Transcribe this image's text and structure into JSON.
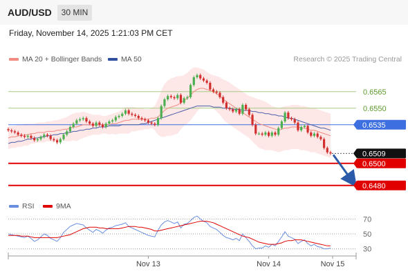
{
  "header": {
    "pair": "AUD/USD",
    "timeframe": "30 MIN",
    "datetime": "Friday, November 14, 2025 1:21:03 PM CET"
  },
  "legend": {
    "ma20_label": "MA 20 + Bollinger Bands",
    "ma50_label": "MA 50",
    "credit": "Research © 2025 Trading Central"
  },
  "rsi_legend": {
    "rsi_label": "RSI",
    "ma_label": "9MA"
  },
  "colors": {
    "candle_up": "#4caf50",
    "candle_down": "#d32f2f",
    "ma20": "#f28b82",
    "bands": "#fde3e3",
    "ma50": "#4a5fa8",
    "resistance_green": "#a8cc84",
    "pivot_blue": "#3d6fe0",
    "support_red": "#e00000",
    "arrow": "#2a5aa8",
    "rsi": "#6a8ee0",
    "rsi_ma": "#e00000"
  },
  "chart_data": [
    {
      "type": "candlestick",
      "title": "AUD/USD 30 MIN",
      "x_tick_labels": [
        "Nov 13",
        "Nov 14",
        "Nov 15"
      ],
      "ylim": [
        0.6468,
        0.6588
      ],
      "levels": [
        {
          "value": 0.6565,
          "label": "0.6565",
          "kind": "resistance"
        },
        {
          "value": 0.655,
          "label": "0.6550",
          "kind": "resistance"
        },
        {
          "value": 0.6535,
          "label": "0.6535",
          "kind": "pivot"
        },
        {
          "value": 0.6509,
          "label": "0.6509",
          "kind": "last"
        },
        {
          "value": 0.65,
          "label": "0.6500",
          "kind": "support"
        },
        {
          "value": 0.648,
          "label": "0.6480",
          "kind": "support"
        }
      ],
      "close": [
        0.653,
        0.6529,
        0.6528,
        0.6526,
        0.6525,
        0.6524,
        0.6525,
        0.6523,
        0.6521,
        0.6522,
        0.6524,
        0.6526,
        0.6525,
        0.6522,
        0.6521,
        0.6519,
        0.6522,
        0.6526,
        0.6529,
        0.6533,
        0.6536,
        0.6539,
        0.654,
        0.6541,
        0.6538,
        0.6536,
        0.6534,
        0.6537,
        0.6535,
        0.6533,
        0.6536,
        0.6538,
        0.6539,
        0.6542,
        0.6543,
        0.6545,
        0.6548,
        0.6545,
        0.6544,
        0.6543,
        0.6541,
        0.654,
        0.6539,
        0.6537,
        0.6536,
        0.6535,
        0.6541,
        0.6552,
        0.6558,
        0.6561,
        0.656,
        0.6559,
        0.6562,
        0.6555,
        0.6559,
        0.656,
        0.6571,
        0.6578,
        0.658,
        0.6577,
        0.6575,
        0.6573,
        0.6567,
        0.6565,
        0.6564,
        0.656,
        0.6555,
        0.655,
        0.6549,
        0.6547,
        0.6549,
        0.6545,
        0.6553,
        0.6549,
        0.6544,
        0.6535,
        0.6527,
        0.6527,
        0.6526,
        0.6528,
        0.6525,
        0.6528,
        0.6526,
        0.6532,
        0.6538,
        0.6546,
        0.6541,
        0.654,
        0.6537,
        0.653,
        0.6533,
        0.6534,
        0.6528,
        0.6525,
        0.6527,
        0.6524,
        0.6522,
        0.6514,
        0.651,
        0.6509
      ],
      "ma20": [
        0.6523,
        0.6524,
        0.6524,
        0.6525,
        0.6525,
        0.6526,
        0.6526,
        0.6527,
        0.6527,
        0.6528,
        0.6528,
        0.6528,
        0.6529,
        0.6529,
        0.6529,
        0.653,
        0.653,
        0.6531,
        0.6531,
        0.6532,
        0.6533,
        0.6533,
        0.6534,
        0.6535,
        0.6535,
        0.6535,
        0.6535,
        0.6535,
        0.6535,
        0.6535,
        0.6535,
        0.6535,
        0.6536,
        0.6536,
        0.6537,
        0.6538,
        0.6539,
        0.6539,
        0.654,
        0.654,
        0.654,
        0.654,
        0.654,
        0.654,
        0.6541,
        0.6541,
        0.6542,
        0.6545,
        0.6548,
        0.655,
        0.6551,
        0.6552,
        0.6553,
        0.6555,
        0.6557,
        0.6559,
        0.6562,
        0.6565,
        0.6567,
        0.6568,
        0.6568,
        0.6567,
        0.6566,
        0.6565,
        0.6563,
        0.6561,
        0.6558,
        0.6556,
        0.6554,
        0.6552,
        0.655,
        0.6548,
        0.6546,
        0.6544,
        0.6542,
        0.654,
        0.6538,
        0.6536,
        0.6535,
        0.6534,
        0.6533,
        0.6532,
        0.6531,
        0.653,
        0.6531,
        0.6532,
        0.6532,
        0.6533,
        0.6533,
        0.6533,
        0.6532,
        0.6532,
        0.6531,
        0.653,
        0.653,
        0.6529,
        0.6528,
        0.6527,
        0.6526,
        0.6525
      ],
      "ma50": [
        0.6518,
        0.6519,
        0.6519,
        0.652,
        0.652,
        0.6521,
        0.6522,
        0.6522,
        0.6523,
        0.6523,
        0.6524,
        0.6524,
        0.6525,
        0.6525,
        0.6526,
        0.6526,
        0.6527,
        0.6527,
        0.6528,
        0.6528,
        0.6529,
        0.6529,
        0.653,
        0.653,
        0.6531,
        0.6531,
        0.6532,
        0.6532,
        0.6533,
        0.6533,
        0.6533,
        0.6534,
        0.6534,
        0.6534,
        0.6534,
        0.6535,
        0.6535,
        0.6535,
        0.6535,
        0.6535,
        0.6535,
        0.6536,
        0.6536,
        0.6537,
        0.6538,
        0.6539,
        0.654,
        0.6541,
        0.6542,
        0.6543,
        0.6544,
        0.6545,
        0.6546,
        0.6547,
        0.6548,
        0.6549,
        0.655,
        0.6551,
        0.6552,
        0.6552,
        0.6552,
        0.6552,
        0.6552,
        0.6551,
        0.6551,
        0.6551,
        0.655,
        0.655,
        0.655,
        0.6549,
        0.6549,
        0.6549,
        0.6548,
        0.6548,
        0.6548,
        0.6547,
        0.6547,
        0.6546,
        0.6546,
        0.6545,
        0.6545,
        0.6544,
        0.6544,
        0.6543,
        0.6543,
        0.6542,
        0.6541,
        0.6541,
        0.654,
        0.6539,
        0.6538,
        0.6537,
        0.6536,
        0.6535,
        0.6534,
        0.6533,
        0.6532,
        0.6532,
        0.6531,
        0.653
      ],
      "bb_upper": [
        0.6533,
        0.6534,
        0.6534,
        0.6535,
        0.6535,
        0.6536,
        0.6536,
        0.6536,
        0.6536,
        0.6537,
        0.6537,
        0.6537,
        0.6538,
        0.6538,
        0.6539,
        0.6539,
        0.654,
        0.6541,
        0.6542,
        0.6544,
        0.6545,
        0.6546,
        0.6546,
        0.6547,
        0.6546,
        0.6545,
        0.6544,
        0.6544,
        0.6544,
        0.6543,
        0.6543,
        0.6544,
        0.6545,
        0.6546,
        0.6547,
        0.6549,
        0.6551,
        0.6551,
        0.6551,
        0.6551,
        0.655,
        0.655,
        0.6549,
        0.6549,
        0.655,
        0.6552,
        0.6558,
        0.6566,
        0.6572,
        0.6575,
        0.6577,
        0.6578,
        0.6579,
        0.6579,
        0.658,
        0.6582,
        0.6585,
        0.6587,
        0.6587,
        0.6586,
        0.6585,
        0.6583,
        0.6581,
        0.658,
        0.6579,
        0.6578,
        0.6576,
        0.6575,
        0.6573,
        0.6571,
        0.6569,
        0.6567,
        0.6565,
        0.6563,
        0.6561,
        0.656,
        0.6559,
        0.6558,
        0.6557,
        0.6556,
        0.6554,
        0.6552,
        0.6551,
        0.655,
        0.6551,
        0.6552,
        0.6552,
        0.6553,
        0.6553,
        0.6553,
        0.6552,
        0.6552,
        0.6551,
        0.655,
        0.655,
        0.6549,
        0.6548,
        0.6547,
        0.6546,
        0.6545
      ],
      "bb_lower": [
        0.6513,
        0.6514,
        0.6514,
        0.6515,
        0.6515,
        0.6516,
        0.6516,
        0.6518,
        0.6518,
        0.6519,
        0.6519,
        0.6519,
        0.652,
        0.652,
        0.6519,
        0.6521,
        0.652,
        0.6521,
        0.652,
        0.652,
        0.6521,
        0.652,
        0.6522,
        0.6523,
        0.6524,
        0.6525,
        0.6526,
        0.6526,
        0.6526,
        0.6527,
        0.6527,
        0.6526,
        0.6527,
        0.6526,
        0.6527,
        0.6527,
        0.6527,
        0.6527,
        0.6529,
        0.6529,
        0.653,
        0.653,
        0.6531,
        0.6531,
        0.6532,
        0.653,
        0.6526,
        0.6524,
        0.6524,
        0.6525,
        0.6525,
        0.6526,
        0.6527,
        0.6531,
        0.6534,
        0.6536,
        0.6539,
        0.6543,
        0.6547,
        0.655,
        0.6551,
        0.6551,
        0.6551,
        0.655,
        0.6547,
        0.6544,
        0.654,
        0.6537,
        0.6535,
        0.6533,
        0.6531,
        0.6529,
        0.6527,
        0.6525,
        0.6523,
        0.652,
        0.6517,
        0.6514,
        0.6513,
        0.6512,
        0.6512,
        0.6512,
        0.6511,
        0.651,
        0.6511,
        0.6512,
        0.6512,
        0.6513,
        0.6513,
        0.6513,
        0.6512,
        0.6512,
        0.6511,
        0.651,
        0.651,
        0.6509,
        0.6508,
        0.6507,
        0.6506,
        0.6505
      ]
    },
    {
      "type": "line",
      "title": "RSI",
      "ylim": [
        25,
        75
      ],
      "y_tick_labels": [
        "70",
        "50",
        "30"
      ],
      "series": [
        {
          "name": "RSI",
          "values": [
            50,
            49,
            48,
            47,
            46,
            45,
            47,
            44,
            40,
            42,
            46,
            50,
            48,
            44,
            42,
            40,
            45,
            52,
            56,
            60,
            62,
            64,
            63,
            62,
            58,
            55,
            52,
            56,
            54,
            51,
            55,
            58,
            59,
            61,
            62,
            63,
            65,
            60,
            58,
            56,
            54,
            52,
            50,
            48,
            47,
            46,
            55,
            62,
            66,
            68,
            66,
            64,
            66,
            58,
            63,
            64,
            68,
            72,
            74,
            70,
            67,
            65,
            60,
            58,
            56,
            52,
            48,
            45,
            44,
            42,
            44,
            41,
            50,
            45,
            40,
            34,
            30,
            31,
            31,
            34,
            32,
            36,
            34,
            40,
            46,
            53,
            47,
            45,
            43,
            37,
            40,
            42,
            37,
            34,
            36,
            33,
            32,
            30,
            30,
            31
          ]
        },
        {
          "name": "9MA",
          "values": [
            48,
            48,
            48,
            48,
            47,
            47,
            47,
            46,
            45,
            45,
            45,
            45,
            45,
            45,
            45,
            45,
            46,
            47,
            48,
            49,
            51,
            53,
            55,
            57,
            58,
            59,
            59,
            59,
            58,
            58,
            57,
            57,
            57,
            57,
            57,
            58,
            59,
            60,
            60,
            60,
            59,
            59,
            58,
            57,
            56,
            54,
            54,
            55,
            56,
            57,
            58,
            59,
            60,
            61,
            62,
            63,
            64,
            65,
            66,
            67,
            67,
            67,
            66,
            65,
            63,
            61,
            59,
            57,
            55,
            53,
            51,
            49,
            47,
            46,
            45,
            43,
            41,
            39,
            38,
            37,
            36,
            36,
            36,
            37,
            38,
            40,
            41,
            41,
            42,
            42,
            42,
            41,
            40,
            39,
            38,
            37,
            36,
            35,
            34,
            34
          ]
        }
      ],
      "reference_lines": [
        70,
        50,
        30
      ]
    }
  ]
}
